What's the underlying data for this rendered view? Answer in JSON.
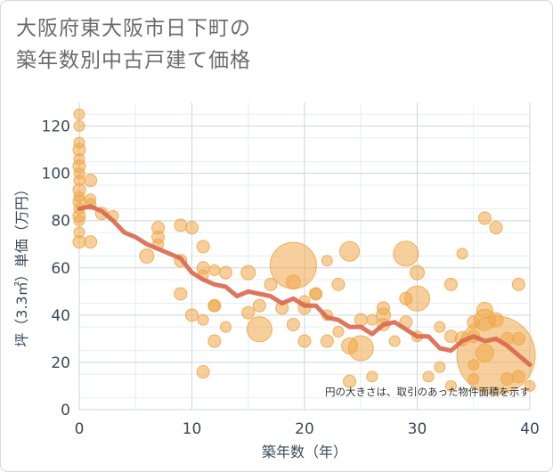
{
  "title_lines": [
    "大阪府東大阪市日下町の",
    "築年数別中古戸建て価格"
  ],
  "chart_data": {
    "type": "scatter",
    "title": "大阪府東大阪市日下町の築年数別中古戸建て価格",
    "xlabel": "築年数（年）",
    "ylabel": "坪（3.3㎡）単価（万円）",
    "xlim": [
      0,
      40
    ],
    "ylim": [
      0,
      130
    ],
    "xticks": [
      0,
      10,
      20,
      30,
      40
    ],
    "yticks": [
      0,
      20,
      40,
      60,
      80,
      100,
      120
    ],
    "grid": true,
    "note": "円の大きさは、取引のあった物件面積を示す",
    "colors": {
      "bubble": "#f0a84a",
      "line": "#d9684e",
      "grid": "#c8d6e2"
    },
    "scatter_points": [
      {
        "x": 0,
        "y": 125,
        "size": 6
      },
      {
        "x": 0,
        "y": 120,
        "size": 6
      },
      {
        "x": 0,
        "y": 113,
        "size": 6
      },
      {
        "x": 0,
        "y": 110,
        "size": 7
      },
      {
        "x": 0,
        "y": 106,
        "size": 6
      },
      {
        "x": 0,
        "y": 103,
        "size": 7
      },
      {
        "x": 0,
        "y": 100,
        "size": 6
      },
      {
        "x": 0,
        "y": 97,
        "size": 6
      },
      {
        "x": 0,
        "y": 93,
        "size": 7
      },
      {
        "x": 0,
        "y": 90,
        "size": 6
      },
      {
        "x": 0,
        "y": 88,
        "size": 7
      },
      {
        "x": 0,
        "y": 85,
        "size": 6
      },
      {
        "x": 0,
        "y": 82,
        "size": 7
      },
      {
        "x": 0,
        "y": 80,
        "size": 6
      },
      {
        "x": 0,
        "y": 75,
        "size": 6
      },
      {
        "x": 0,
        "y": 71,
        "size": 7
      },
      {
        "x": 1,
        "y": 97,
        "size": 7
      },
      {
        "x": 1,
        "y": 89,
        "size": 6
      },
      {
        "x": 1,
        "y": 87,
        "size": 6
      },
      {
        "x": 1,
        "y": 71,
        "size": 7
      },
      {
        "x": 2,
        "y": 83,
        "size": 7
      },
      {
        "x": 3,
        "y": 82,
        "size": 6
      },
      {
        "x": 6,
        "y": 65,
        "size": 8
      },
      {
        "x": 7,
        "y": 77,
        "size": 7
      },
      {
        "x": 7,
        "y": 73,
        "size": 7
      },
      {
        "x": 7,
        "y": 70,
        "size": 6
      },
      {
        "x": 9,
        "y": 78,
        "size": 7
      },
      {
        "x": 9,
        "y": 63,
        "size": 7
      },
      {
        "x": 9,
        "y": 49,
        "size": 7
      },
      {
        "x": 10,
        "y": 77,
        "size": 7
      },
      {
        "x": 10,
        "y": 40,
        "size": 7
      },
      {
        "x": 11,
        "y": 69,
        "size": 7
      },
      {
        "x": 11,
        "y": 60,
        "size": 7
      },
      {
        "x": 11,
        "y": 57,
        "size": 6
      },
      {
        "x": 11,
        "y": 38,
        "size": 6
      },
      {
        "x": 11,
        "y": 16,
        "size": 7
      },
      {
        "x": 12,
        "y": 59,
        "size": 6
      },
      {
        "x": 12,
        "y": 44,
        "size": 7
      },
      {
        "x": 12,
        "y": 44,
        "size": 6
      },
      {
        "x": 12,
        "y": 29,
        "size": 7
      },
      {
        "x": 13,
        "y": 58,
        "size": 7
      },
      {
        "x": 13,
        "y": 35,
        "size": 6
      },
      {
        "x": 15,
        "y": 58,
        "size": 8
      },
      {
        "x": 15,
        "y": 41,
        "size": 7
      },
      {
        "x": 16,
        "y": 44,
        "size": 7
      },
      {
        "x": 16,
        "y": 34,
        "size": 14
      },
      {
        "x": 17,
        "y": 53,
        "size": 7
      },
      {
        "x": 18,
        "y": 43,
        "size": 7
      },
      {
        "x": 19,
        "y": 61,
        "size": 26
      },
      {
        "x": 19,
        "y": 54,
        "size": 8
      },
      {
        "x": 19,
        "y": 36,
        "size": 7
      },
      {
        "x": 20,
        "y": 46,
        "size": 6
      },
      {
        "x": 20,
        "y": 43,
        "size": 7
      },
      {
        "x": 20,
        "y": 29,
        "size": 7
      },
      {
        "x": 21,
        "y": 49,
        "size": 7
      },
      {
        "x": 21,
        "y": 49,
        "size": 6
      },
      {
        "x": 22,
        "y": 63,
        "size": 6
      },
      {
        "x": 22,
        "y": 40,
        "size": 6
      },
      {
        "x": 22,
        "y": 29,
        "size": 7
      },
      {
        "x": 23,
        "y": 53,
        "size": 7
      },
      {
        "x": 23,
        "y": 33,
        "size": 6
      },
      {
        "x": 24,
        "y": 67,
        "size": 11
      },
      {
        "x": 24,
        "y": 27,
        "size": 9
      },
      {
        "x": 24,
        "y": 12,
        "size": 7
      },
      {
        "x": 25,
        "y": 38,
        "size": 7
      },
      {
        "x": 25,
        "y": 26,
        "size": 14
      },
      {
        "x": 26,
        "y": 14,
        "size": 6
      },
      {
        "x": 26,
        "y": 38,
        "size": 6
      },
      {
        "x": 27,
        "y": 43,
        "size": 7
      },
      {
        "x": 27,
        "y": 40,
        "size": 8
      },
      {
        "x": 27,
        "y": 36,
        "size": 7
      },
      {
        "x": 28,
        "y": 29,
        "size": 6
      },
      {
        "x": 29,
        "y": 66,
        "size": 14
      },
      {
        "x": 29,
        "y": 47,
        "size": 7
      },
      {
        "x": 29,
        "y": 37,
        "size": 7
      },
      {
        "x": 30,
        "y": 58,
        "size": 8
      },
      {
        "x": 30,
        "y": 47,
        "size": 14
      },
      {
        "x": 30,
        "y": 31,
        "size": 6
      },
      {
        "x": 31,
        "y": 14,
        "size": 6
      },
      {
        "x": 32,
        "y": 35,
        "size": 6
      },
      {
        "x": 32,
        "y": 18,
        "size": 6
      },
      {
        "x": 33,
        "y": 53,
        "size": 7
      },
      {
        "x": 33,
        "y": 31,
        "size": 7
      },
      {
        "x": 33,
        "y": 10,
        "size": 6
      },
      {
        "x": 34,
        "y": 66,
        "size": 6
      },
      {
        "x": 34,
        "y": 30,
        "size": 8
      },
      {
        "x": 35,
        "y": 37,
        "size": 7
      },
      {
        "x": 35,
        "y": 31,
        "size": 7
      },
      {
        "x": 35,
        "y": 19,
        "size": 6
      },
      {
        "x": 35,
        "y": 13,
        "size": 6
      },
      {
        "x": 36,
        "y": 81,
        "size": 7
      },
      {
        "x": 36,
        "y": 42,
        "size": 9
      },
      {
        "x": 36,
        "y": 38,
        "size": 12
      },
      {
        "x": 36,
        "y": 24,
        "size": 10
      },
      {
        "x": 37,
        "y": 77,
        "size": 7
      },
      {
        "x": 37,
        "y": 38,
        "size": 8
      },
      {
        "x": 37,
        "y": 23,
        "size": 44
      },
      {
        "x": 38,
        "y": 30,
        "size": 7
      },
      {
        "x": 38,
        "y": 13,
        "size": 7
      },
      {
        "x": 39,
        "y": 53,
        "size": 7
      },
      {
        "x": 39,
        "y": 30,
        "size": 7
      },
      {
        "x": 39,
        "y": 14,
        "size": 7
      },
      {
        "x": 40,
        "y": 10,
        "size": 6
      }
    ],
    "trend_line": {
      "x": [
        0,
        1,
        2,
        3,
        4,
        5,
        6,
        7,
        8,
        9,
        10,
        11,
        12,
        13,
        14,
        15,
        16,
        17,
        18,
        19,
        20,
        21,
        22,
        23,
        24,
        25,
        26,
        27,
        28,
        29,
        30,
        31,
        32,
        33,
        34,
        35,
        36,
        37,
        38,
        39,
        40
      ],
      "y": [
        85,
        86,
        84,
        80,
        75,
        73,
        70,
        68,
        66,
        64,
        58,
        55,
        53,
        52,
        48,
        50,
        49,
        48,
        45,
        47,
        44,
        44,
        39,
        38,
        35,
        35,
        32,
        36,
        37,
        34,
        31,
        31,
        26,
        25,
        29,
        31,
        29,
        30,
        27,
        23,
        19
      ]
    }
  }
}
